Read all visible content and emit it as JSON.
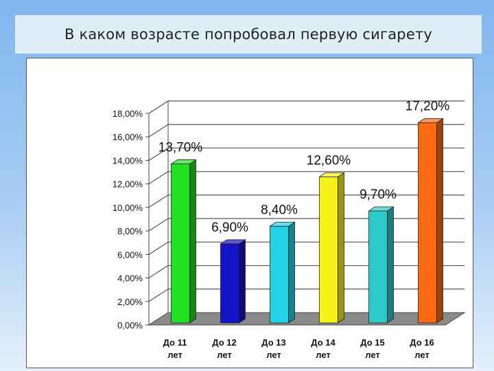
{
  "title": "В каком возрасте попробовал первую сигарету",
  "chart_data": {
    "type": "bar",
    "categories": [
      "До 11 лет",
      "До 12 лет",
      "До 13 лет",
      "До 14 лет",
      "До 15 лет",
      "До 16 лет"
    ],
    "values": [
      13.7,
      6.9,
      8.4,
      12.6,
      9.7,
      17.2
    ],
    "data_labels": [
      "13,70%",
      "6,90%",
      "8,40%",
      "12,60%",
      "9,70%",
      "17,20%"
    ],
    "bar_colors": [
      "#22e022",
      "#1313c8",
      "#22d3e6",
      "#f7f21a",
      "#2ec9c9",
      "#ff6a10"
    ],
    "ylim": [
      0,
      18
    ],
    "y_ticks": [
      "0,00%",
      "2,00%",
      "4,00%",
      "6,00%",
      "8,00%",
      "10,00%",
      "12,00%",
      "14,00%",
      "16,00%",
      "18,00%"
    ],
    "grid": true,
    "legend": "none",
    "xlabel": "",
    "ylabel": ""
  }
}
